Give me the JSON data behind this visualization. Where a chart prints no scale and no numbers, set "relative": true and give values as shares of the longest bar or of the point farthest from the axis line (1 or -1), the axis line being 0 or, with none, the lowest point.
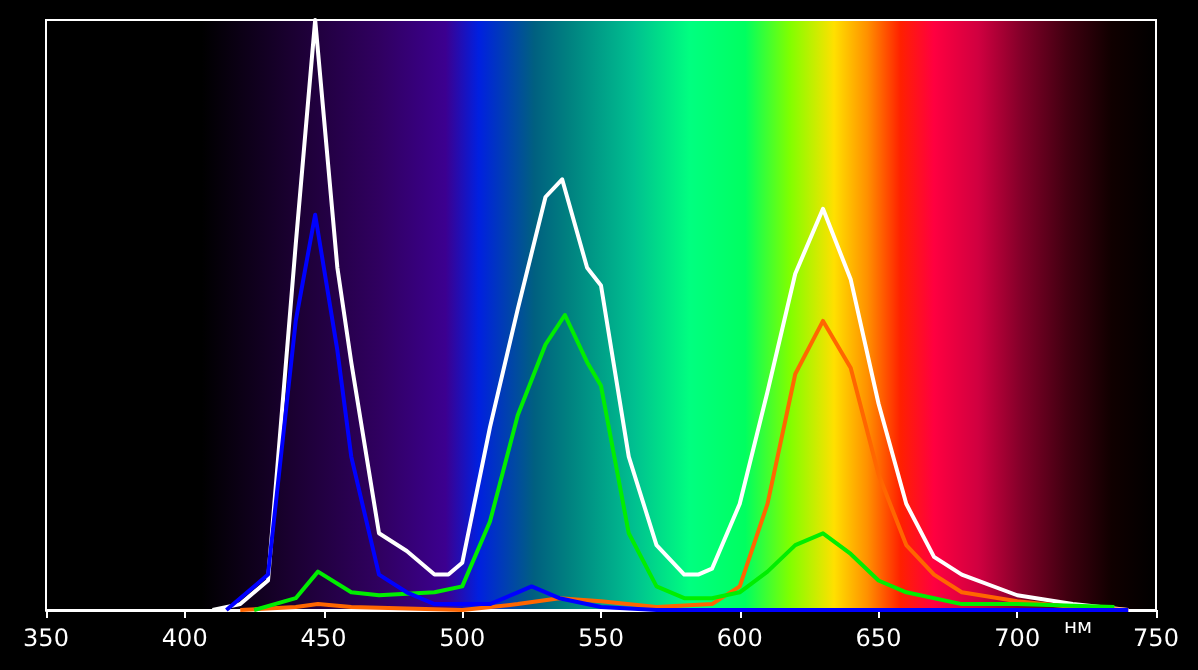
{
  "chart_data": {
    "type": "line",
    "xlabel": "нм",
    "xlim": [
      350,
      750
    ],
    "xticks": [
      350,
      400,
      450,
      500,
      550,
      600,
      650,
      700,
      750
    ],
    "relative": true,
    "grid": false,
    "marker": "none",
    "line_style": "solid",
    "series": [
      {
        "color": "#ffffff",
        "x": [
          410,
          420,
          430,
          440,
          447,
          455,
          460,
          470,
          480,
          490,
          495,
          500,
          510,
          520,
          530,
          536,
          545,
          550,
          560,
          570,
          580,
          585,
          590,
          600,
          610,
          620,
          630,
          640,
          650,
          660,
          670,
          680,
          700,
          720,
          740
        ],
        "values": [
          0,
          0.01,
          0.05,
          0.62,
          1,
          0.58,
          0.42,
          0.13,
          0.1,
          0.06,
          0.06,
          0.08,
          0.31,
          0.51,
          0.7,
          0.73,
          0.58,
          0.55,
          0.26,
          0.11,
          0.06,
          0.06,
          0.07,
          0.18,
          0.37,
          0.57,
          0.68,
          0.56,
          0.35,
          0.18,
          0.09,
          0.06,
          0.025,
          0.01,
          0
        ]
      },
      {
        "color": "#ff6600",
        "x": [
          420,
          440,
          448,
          460,
          500,
          520,
          535,
          550,
          570,
          590,
          600,
          610,
          620,
          630,
          640,
          650,
          660,
          670,
          680,
          700,
          720,
          740
        ],
        "values": [
          0,
          0.005,
          0.01,
          0.005,
          0,
          0.01,
          0.02,
          0.015,
          0.005,
          0.01,
          0.04,
          0.18,
          0.4,
          0.49,
          0.41,
          0.23,
          0.11,
          0.06,
          0.03,
          0.015,
          0.005,
          0
        ]
      },
      {
        "color": "#00ee00",
        "x": [
          425,
          440,
          448,
          460,
          470,
          490,
          500,
          510,
          520,
          530,
          537,
          545,
          550,
          560,
          570,
          580,
          590,
          600,
          610,
          620,
          630,
          640,
          650,
          660,
          680,
          700,
          735
        ],
        "values": [
          0,
          0.02,
          0.065,
          0.03,
          0.025,
          0.03,
          0.04,
          0.15,
          0.33,
          0.45,
          0.5,
          0.42,
          0.38,
          0.13,
          0.04,
          0.02,
          0.02,
          0.03,
          0.065,
          0.11,
          0.13,
          0.095,
          0.05,
          0.03,
          0.01,
          0.01,
          0.005
        ]
      },
      {
        "color": "#0000ff",
        "x": [
          415,
          430,
          440,
          447,
          455,
          460,
          470,
          480,
          490,
          510,
          520,
          525,
          535,
          550,
          570,
          740
        ],
        "values": [
          0,
          0.06,
          0.49,
          0.67,
          0.44,
          0.26,
          0.06,
          0.03,
          0.01,
          0.01,
          0.03,
          0.04,
          0.02,
          0.005,
          0,
          0
        ]
      }
    ]
  }
}
